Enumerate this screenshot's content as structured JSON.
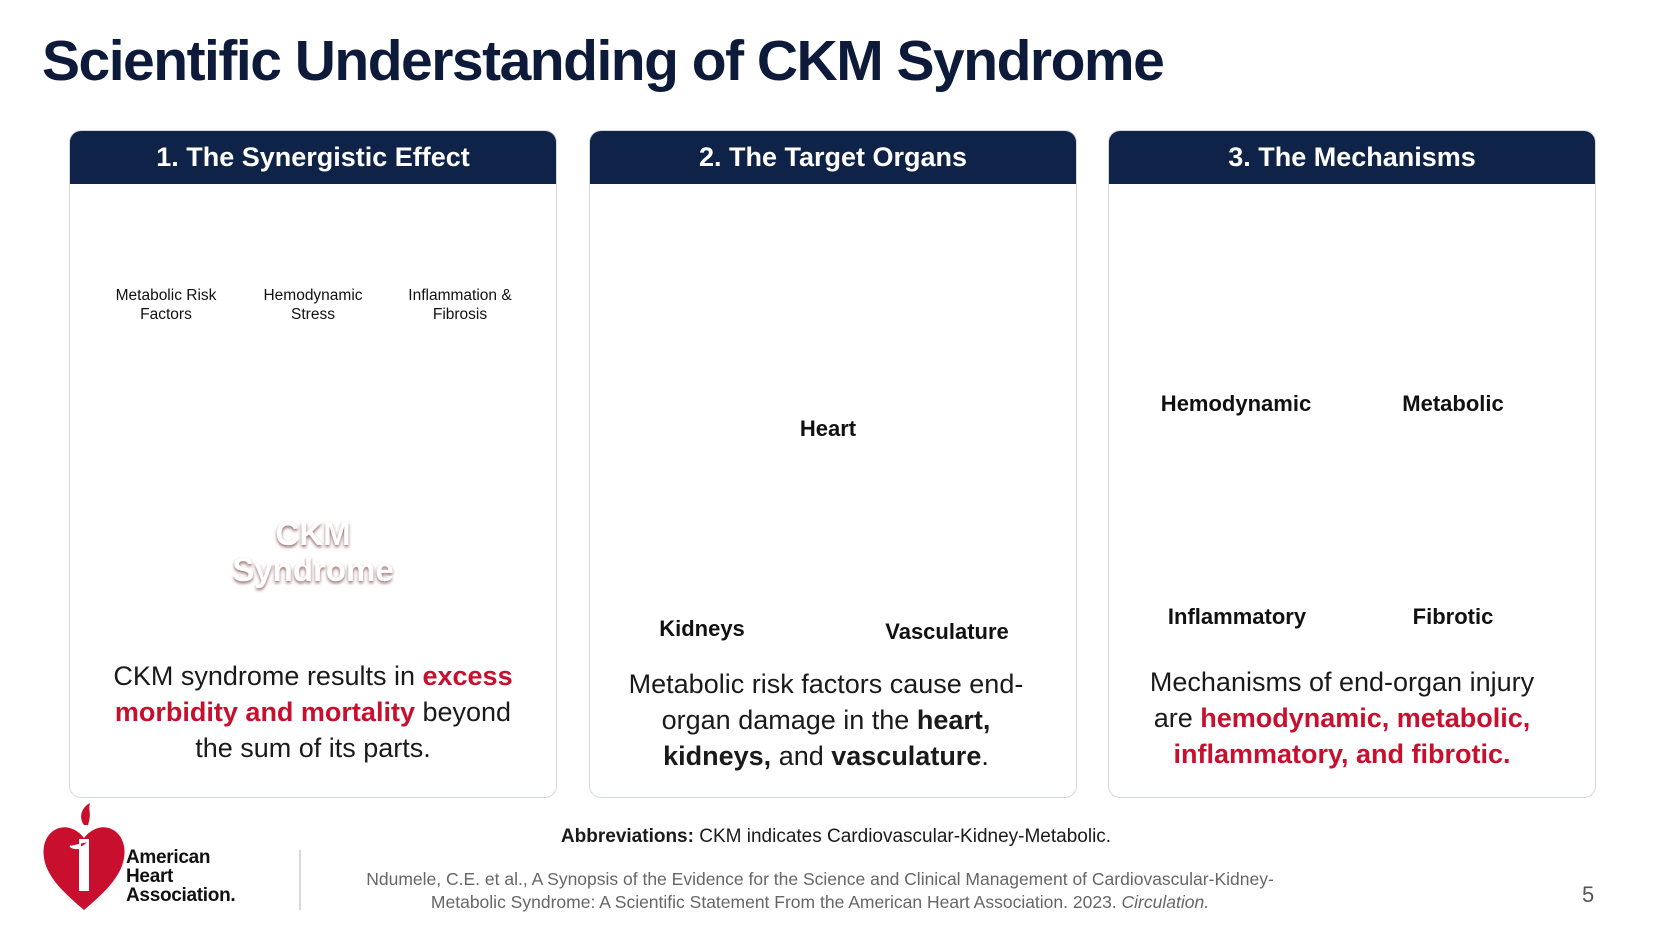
{
  "header": {
    "title": "Scientific Understanding of CKM Syndrome"
  },
  "panels": [
    {
      "heading": "1. The Synergistic Effect",
      "factors": [
        "Metabolic Risk Factors",
        "Hemodynamic Stress",
        "Inflammation & Fibrosis"
      ],
      "center_label": "CKM Syndrome",
      "text": [
        {
          "text": "CKM syndrome results in "
        },
        {
          "text": "excess morbidity and mortality",
          "style": "red"
        },
        {
          "text": " beyond the sum of its parts."
        }
      ]
    },
    {
      "heading": "2. The Target Organs",
      "organs": [
        "Heart",
        "Kidneys",
        "Vasculature"
      ],
      "text": [
        {
          "text": "Metabolic risk factors cause end-organ damage in the "
        },
        {
          "text": "heart, kidneys,",
          "style": "bold"
        },
        {
          "text": " and "
        },
        {
          "text": "vasculature",
          "style": "bold"
        },
        {
          "text": "."
        }
      ]
    },
    {
      "heading": "3. The Mechanisms",
      "mechanisms": [
        "Hemodynamic",
        "Metabolic",
        "Inflammatory",
        "Fibrotic"
      ],
      "text": [
        {
          "text": "Mechanisms of end-organ injury are "
        },
        {
          "text": "hemodynamic, metabolic, inflammatory, and fibrotic.",
          "style": "red"
        }
      ]
    }
  ],
  "footer": {
    "abbreviations": [
      {
        "text": "Abbreviations:",
        "style": "bold"
      },
      {
        "text": " CKM indicates Cardiovascular-Kidney-Metabolic."
      }
    ],
    "citation": [
      {
        "text": "Ndumele, C.E. et al., A Synopsis of the Evidence for the Science and Clinical Management of Cardiovascular-Kidney-Metabolic Syndrome: A Scientific Statement From the American Heart Association. 2023. "
      },
      {
        "text": "Circulation.",
        "style": "italic"
      }
    ],
    "logo": "American Heart Association.",
    "page_number": "5"
  }
}
